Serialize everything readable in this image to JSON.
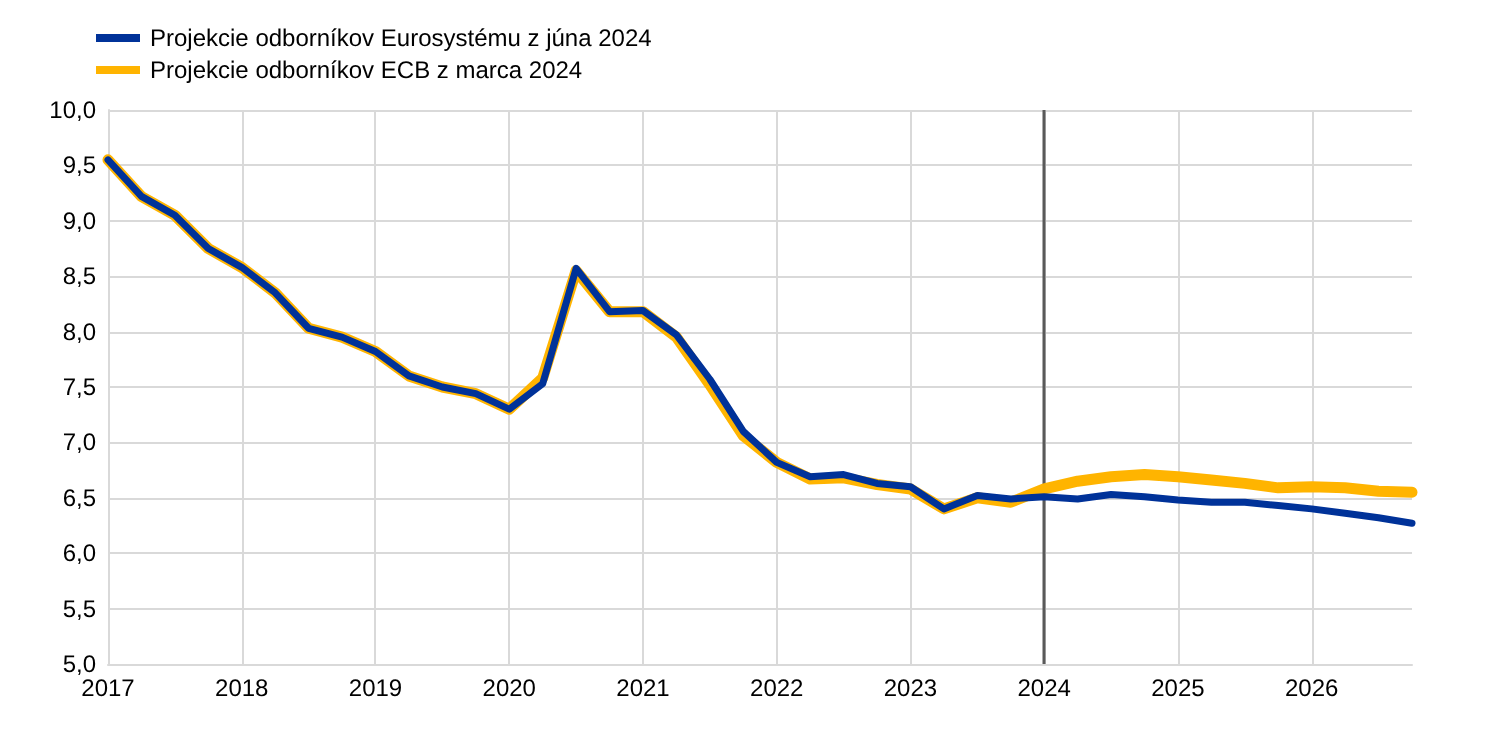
{
  "chart_data": {
    "type": "line",
    "x": [
      2017,
      2017.25,
      2017.5,
      2017.75,
      2018,
      2018.25,
      2018.5,
      2018.75,
      2019,
      2019.25,
      2019.5,
      2019.75,
      2020,
      2020.25,
      2020.5,
      2020.75,
      2021,
      2021.25,
      2021.5,
      2021.75,
      2022,
      2022.25,
      2022.5,
      2022.75,
      2023,
      2023.25,
      2023.5,
      2023.75,
      2024,
      2024.25,
      2024.5,
      2024.75,
      2025,
      2025.25,
      2025.5,
      2025.75,
      2026,
      2026.25,
      2026.5,
      2026.75
    ],
    "series": [
      {
        "name": "Projekcie odborníkov Eurosystému z júna 2024",
        "color": "#003299",
        "values": [
          9.55,
          9.22,
          9.05,
          8.75,
          8.58,
          8.35,
          8.03,
          7.95,
          7.82,
          7.6,
          7.5,
          7.44,
          7.3,
          7.53,
          8.57,
          8.18,
          8.19,
          7.97,
          7.57,
          7.1,
          6.82,
          6.69,
          6.71,
          6.63,
          6.6,
          6.4,
          6.52,
          6.49,
          6.51,
          6.49,
          6.53,
          6.51,
          6.48,
          6.46,
          6.46,
          6.43,
          6.4,
          6.36,
          6.32,
          6.27
        ]
      },
      {
        "name": "Projekcie odborníkov ECB z marca 2024",
        "color": "#ffb400",
        "values": [
          9.55,
          9.22,
          9.05,
          8.75,
          8.58,
          8.35,
          8.03,
          7.95,
          7.82,
          7.6,
          7.5,
          7.44,
          7.3,
          7.58,
          8.55,
          8.18,
          8.18,
          7.95,
          7.52,
          7.06,
          6.82,
          6.67,
          6.68,
          6.62,
          6.58,
          6.4,
          6.5,
          6.46,
          6.58,
          6.65,
          6.69,
          6.71,
          6.69,
          6.66,
          6.63,
          6.59,
          6.6,
          6.59,
          6.56,
          6.55
        ]
      }
    ],
    "xlim": [
      2017,
      2026.75
    ],
    "xticks": [
      2017,
      2018,
      2019,
      2020,
      2021,
      2022,
      2023,
      2024,
      2025,
      2026
    ],
    "ylim": [
      5,
      10
    ],
    "yticks": [
      {
        "value": 5,
        "label": "5,0"
      },
      {
        "value": 5.5,
        "label": "5,5"
      },
      {
        "value": 6,
        "label": "6,0"
      },
      {
        "value": 6.5,
        "label": "6,5"
      },
      {
        "value": 7,
        "label": "7,0"
      },
      {
        "value": 7.5,
        "label": "7,5"
      },
      {
        "value": 8,
        "label": "8,0"
      },
      {
        "value": 8.5,
        "label": "8,5"
      },
      {
        "value": 9,
        "label": "9,0"
      },
      {
        "value": 9.5,
        "label": "9,5"
      },
      {
        "value": 10,
        "label": "10,0"
      }
    ],
    "ref_lines": [
      {
        "axis": "x",
        "value": 2024,
        "color": "#595959",
        "line_style": "solid"
      }
    ],
    "grid": true,
    "legend": "top left",
    "marker": "none",
    "line_style": "solid"
  }
}
